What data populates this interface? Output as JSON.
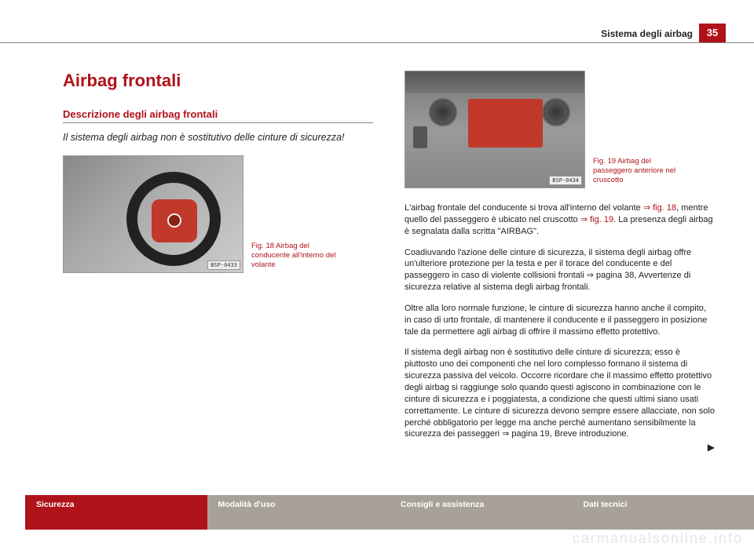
{
  "header": {
    "section_label": "Sistema degli airbag",
    "page_number": "35"
  },
  "left": {
    "h1": "Airbag frontali",
    "h2": "Descrizione degli airbag frontali",
    "lead": "Il sistema degli airbag non è sostitutivo delle cinture di sicurezza!",
    "fig18": {
      "caption": "Fig. 18  Airbag del conducente all'interno del volante",
      "tag": "BSP-0433"
    }
  },
  "right": {
    "fig19": {
      "caption": "Fig. 19  Airbag del passeggero anteriore nel cruscotto",
      "tag": "BSP-0434"
    },
    "p1_a": "L'airbag frontale del conducente si trova all'interno del volante ",
    "p1_ref1": "⇒ fig. 18",
    "p1_b": ", mentre quello del passeggero è ubicato nel cruscotto ",
    "p1_ref2": "⇒ fig. 19",
    "p1_c": ". La presenza degli airbag è segnalata dalla scritta \"AIRBAG\".",
    "p2_a": "Coadiuvando l'azione delle cinture di sicurezza, il sistema degli airbag offre un'ulteriore protezione per la testa e per il torace del conducente e del passeggero in caso di violente collisioni frontali ⇒ pagina 38, Avvertenze di sicurezza relative al sistema degli airbag frontali.",
    "p3": "Oltre alla loro normale funzione, le cinture di sicurezza hanno anche il compito, in caso di urto frontale, di mantenere il conducente e il passeggero in posizione tale da permettere agli airbag di offrire il massimo effetto protettivo.",
    "p4": "Il sistema degli airbag non è sostitutivo delle cinture di sicurezza; esso è piuttosto uno dei componenti che nel loro complesso formano il sistema di sicurezza passiva del veicolo. Occorre ricordare che il massimo effetto protettivo degli airbag si raggiunge solo quando questi agiscono in combinazione con le cinture di sicurezza e i poggiatesta, a condizione che questi ultimi siano usati correttamente. Le cinture di sicurezza devono sempre essere allacciate, non solo perché obbligatorio per legge ma anche perché aumentano sensibilmente la sicurezza dei passeggeri ⇒ pagina 19, Breve introduzione.",
    "arrow": "▶"
  },
  "tabs": {
    "t1": "Sicurezza",
    "t2": "Modalità d'uso",
    "t3": "Consigli e assistenza",
    "t4": "Dati tecnici"
  },
  "watermark": "carmanualsonline.info",
  "colors": {
    "accent": "#b01219",
    "tab_inactive": "#a8a19a",
    "fig_airbag": "#c0392b"
  }
}
